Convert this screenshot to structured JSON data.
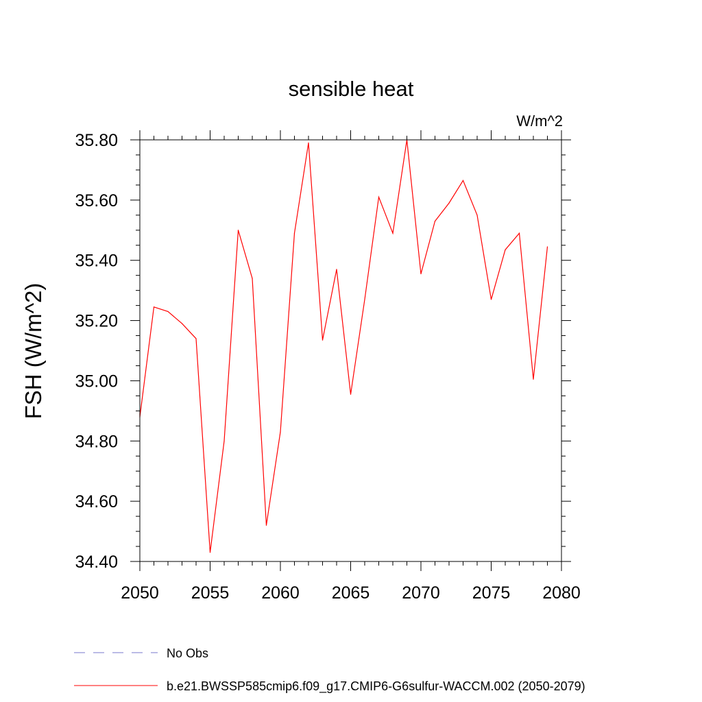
{
  "chart_data": {
    "type": "line",
    "title": "sensible heat",
    "units": "W/m^2",
    "ylabel": "FSH  (W/m^2)",
    "xlabel": "",
    "xlim": [
      2050,
      2080
    ],
    "ylim": [
      34.4,
      35.8
    ],
    "x_ticks": [
      2050,
      2055,
      2060,
      2065,
      2070,
      2075,
      2080
    ],
    "x_tick_labels": [
      "2050",
      "2055",
      "2060",
      "2065",
      "2070",
      "2075",
      "2080"
    ],
    "y_ticks": [
      34.4,
      34.6,
      34.8,
      35.0,
      35.2,
      35.4,
      35.6,
      35.8
    ],
    "y_tick_labels": [
      "34.40",
      "34.60",
      "34.80",
      "35.00",
      "35.20",
      "35.40",
      "35.60",
      "35.80"
    ],
    "grid": false,
    "series": [
      {
        "name": "b.e21.BWSSP585cmip6.f09_g17.CMIP6-G6sulfur-WACCM.002 (2050-2079)",
        "color": "#ff0000",
        "x": [
          2050,
          2051,
          2052,
          2053,
          2054,
          2055,
          2056,
          2057,
          2058,
          2059,
          2060,
          2061,
          2062,
          2063,
          2064,
          2065,
          2066,
          2067,
          2068,
          2069,
          2070,
          2071,
          2072,
          2073,
          2074,
          2075,
          2076,
          2077,
          2078,
          2079
        ],
        "values": [
          34.88,
          35.245,
          35.23,
          35.19,
          35.14,
          34.43,
          34.8,
          35.5,
          35.34,
          34.52,
          34.83,
          35.49,
          35.79,
          35.135,
          35.37,
          34.955,
          35.27,
          35.61,
          35.49,
          35.8,
          35.355,
          35.53,
          35.59,
          35.665,
          35.55,
          35.27,
          35.435,
          35.49,
          35.005,
          35.445
        ]
      }
    ],
    "legend": {
      "placement": "bottom-left",
      "entries": [
        {
          "label": "No Obs",
          "color": "#7777cc",
          "style": "dashed"
        },
        {
          "label": "b.e21.BWSSP585cmip6.f09_g17.CMIP6-G6sulfur-WACCM.002 (2050-2079)",
          "color": "#ff0000",
          "style": "solid"
        }
      ]
    }
  }
}
